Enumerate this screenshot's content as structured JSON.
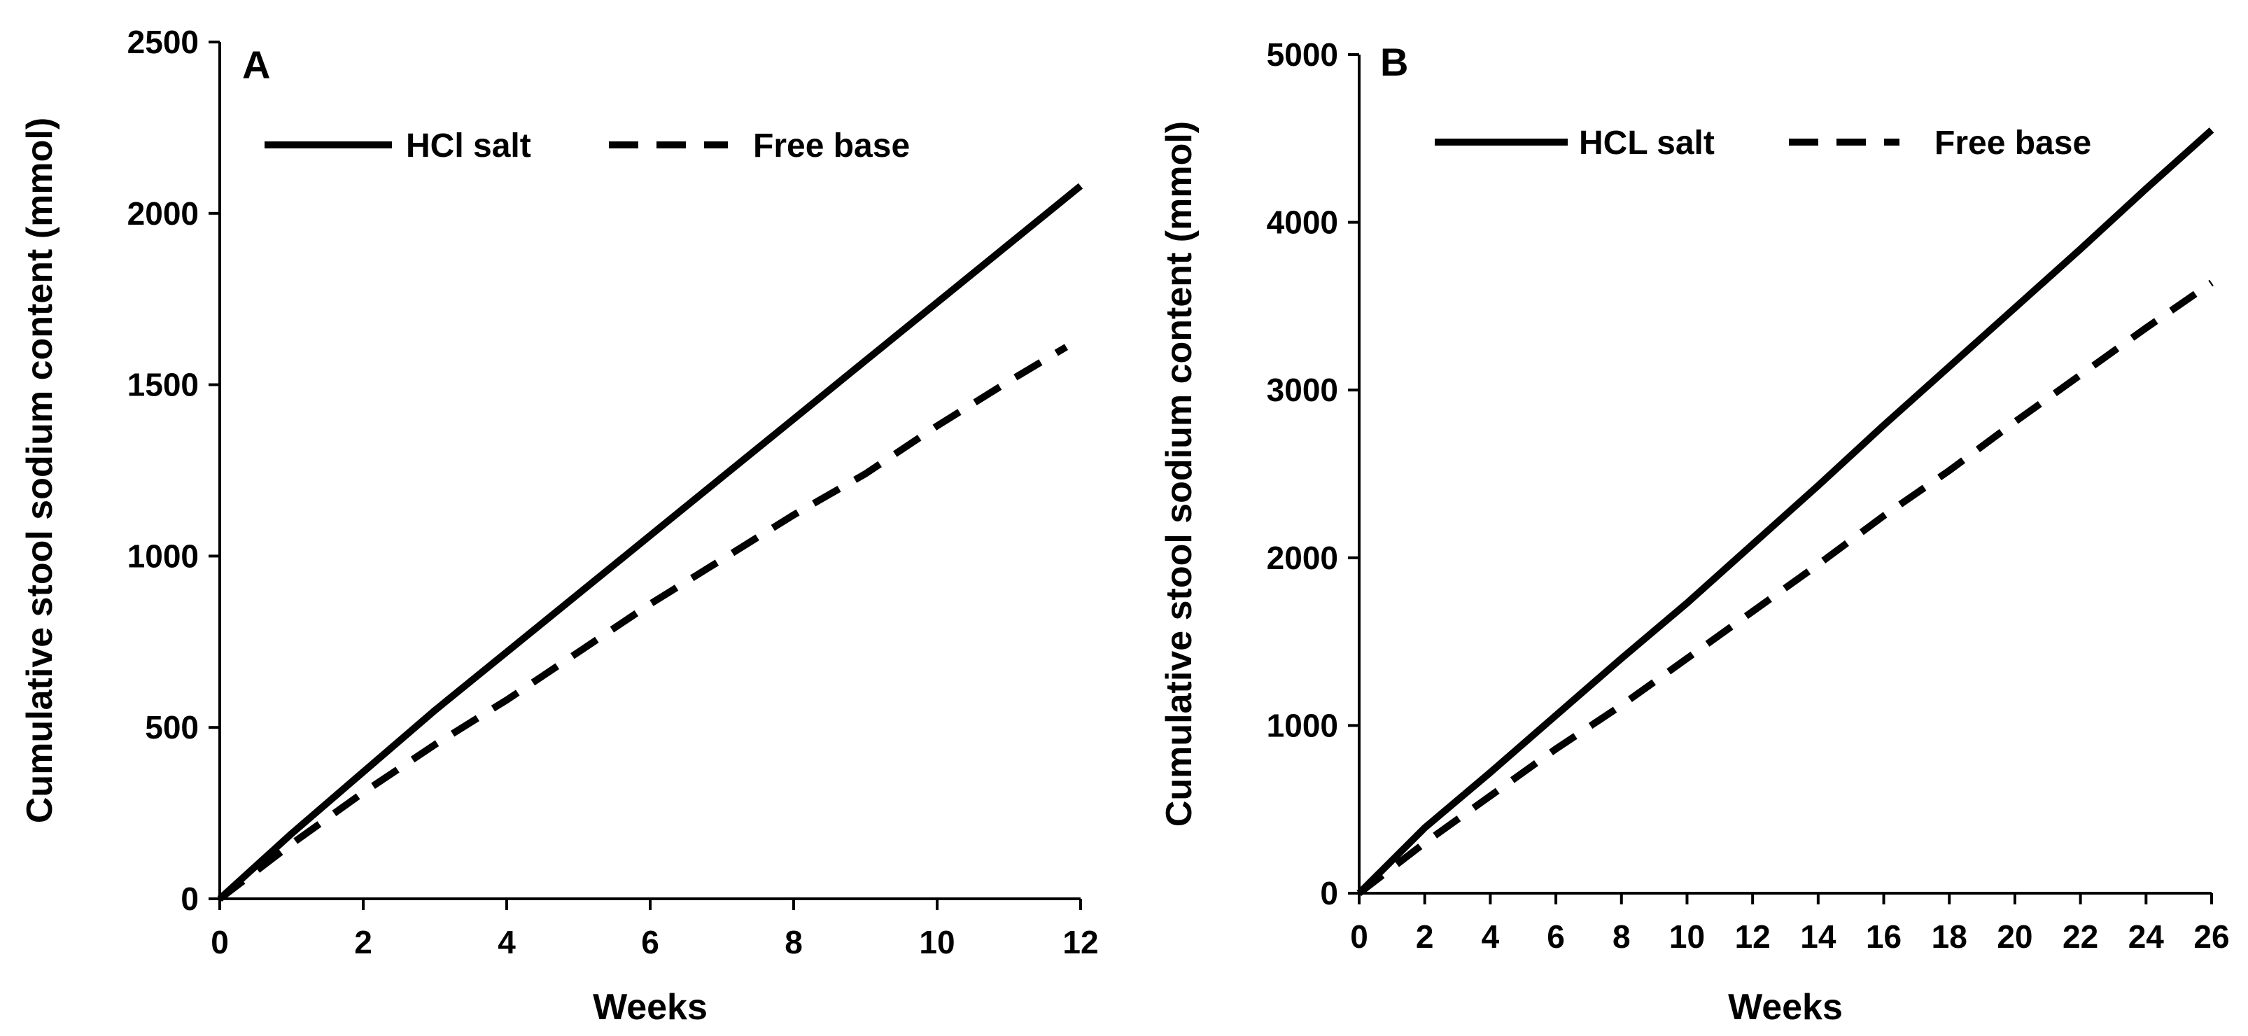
{
  "chart_data": [
    {
      "type": "line",
      "panel_label": "A",
      "title": "",
      "xlabel": "Weeks",
      "ylabel": "Cumulative stool sodium content (mmol)",
      "xlim": [
        0,
        12
      ],
      "ylim": [
        0,
        2500
      ],
      "xticks": [
        "0",
        "2",
        "4",
        "6",
        "8",
        "10",
        "12"
      ],
      "yticks": [
        "0",
        "500",
        "1000",
        "1500",
        "2000",
        "2500"
      ],
      "legend_position": "top",
      "series": [
        {
          "name": "HCl salt",
          "style": "solid",
          "x": [
            0,
            1,
            2,
            3,
            4,
            5,
            6,
            7,
            8,
            9,
            10,
            11,
            12
          ],
          "values": [
            0,
            190,
            370,
            550,
            720,
            890,
            1060,
            1230,
            1400,
            1570,
            1740,
            1910,
            2080
          ]
        },
        {
          "name": "Free base",
          "style": "dashed",
          "x": [
            0,
            1,
            2,
            3,
            4,
            5,
            6,
            7,
            8,
            9,
            10,
            11,
            11.8
          ],
          "values": [
            0,
            160,
            310,
            450,
            580,
            720,
            860,
            990,
            1120,
            1240,
            1380,
            1510,
            1610
          ]
        }
      ]
    },
    {
      "type": "line",
      "panel_label": "B",
      "title": "",
      "xlabel": "Weeks",
      "ylabel": "Cumulative stool sodium content (mmol)",
      "xlim": [
        0,
        26
      ],
      "ylim": [
        0,
        5000
      ],
      "xticks": [
        "0",
        "2",
        "4",
        "6",
        "8",
        "10",
        "12",
        "14",
        "16",
        "18",
        "20",
        "22",
        "24",
        "26"
      ],
      "yticks": [
        "0",
        "1000",
        "2000",
        "3000",
        "4000",
        "5000"
      ],
      "legend_position": "top",
      "series": [
        {
          "name": "HCL salt",
          "style": "solid",
          "x": [
            0,
            2,
            4,
            6,
            8,
            10,
            12,
            14,
            16,
            18,
            20,
            22,
            24,
            26
          ],
          "values": [
            0,
            390,
            720,
            1060,
            1400,
            1730,
            2080,
            2430,
            2790,
            3140,
            3490,
            3840,
            4200,
            4550
          ]
        },
        {
          "name": "Free base",
          "style": "dashed",
          "x": [
            0,
            2,
            4,
            6,
            8,
            10,
            12,
            14,
            16,
            18,
            20,
            22,
            24,
            26
          ],
          "values": [
            0,
            300,
            580,
            860,
            1120,
            1400,
            1680,
            1960,
            2250,
            2520,
            2810,
            3090,
            3370,
            3640
          ]
        }
      ]
    }
  ]
}
